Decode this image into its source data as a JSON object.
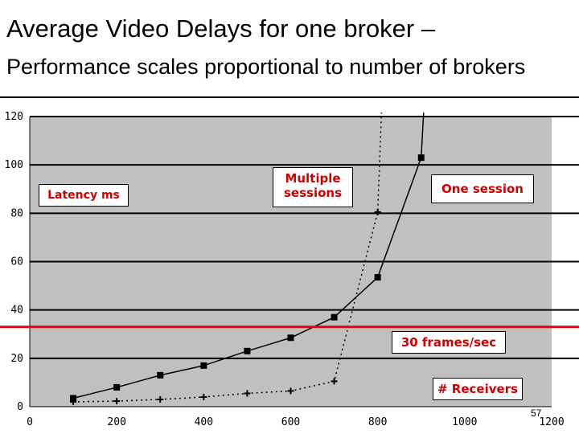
{
  "header": {
    "title": "Average Video Delays for one broker –",
    "subtitle": "Performance scales proportional to number of brokers"
  },
  "annotations": {
    "latency": "Latency ms",
    "multiple": "Multiple sessions",
    "one": "One session",
    "threshold": "30 frames/sec",
    "receivers": "# Receivers"
  },
  "footer": {
    "page": "57"
  },
  "chart_data": {
    "type": "line",
    "xlabel": "# Receivers",
    "ylabel": "Latency ms",
    "xlim": [
      0,
      1200
    ],
    "ylim": [
      0,
      120
    ],
    "x_ticks": [
      0,
      200,
      400,
      600,
      800,
      1000,
      1200
    ],
    "y_ticks": [
      0,
      20,
      40,
      60,
      80,
      100,
      120
    ],
    "grid": true,
    "threshold": {
      "label": "30 frames/sec",
      "y": 33,
      "color": "#ee0000"
    },
    "series": [
      {
        "name": "One session",
        "style": "solid",
        "marker": "square",
        "x": [
          100,
          200,
          300,
          400,
          500,
          600,
          700,
          800,
          900
        ],
        "y": [
          3.5,
          8,
          13,
          17,
          23,
          28.5,
          37,
          53.5,
          103
        ]
      },
      {
        "name": "Multiple sessions",
        "style": "dotted",
        "marker": "cross",
        "x": [
          100,
          200,
          300,
          400,
          500,
          600,
          700,
          800
        ],
        "y": [
          2,
          2.3,
          3,
          4,
          5.5,
          6.5,
          10.5,
          80.5
        ]
      }
    ]
  }
}
